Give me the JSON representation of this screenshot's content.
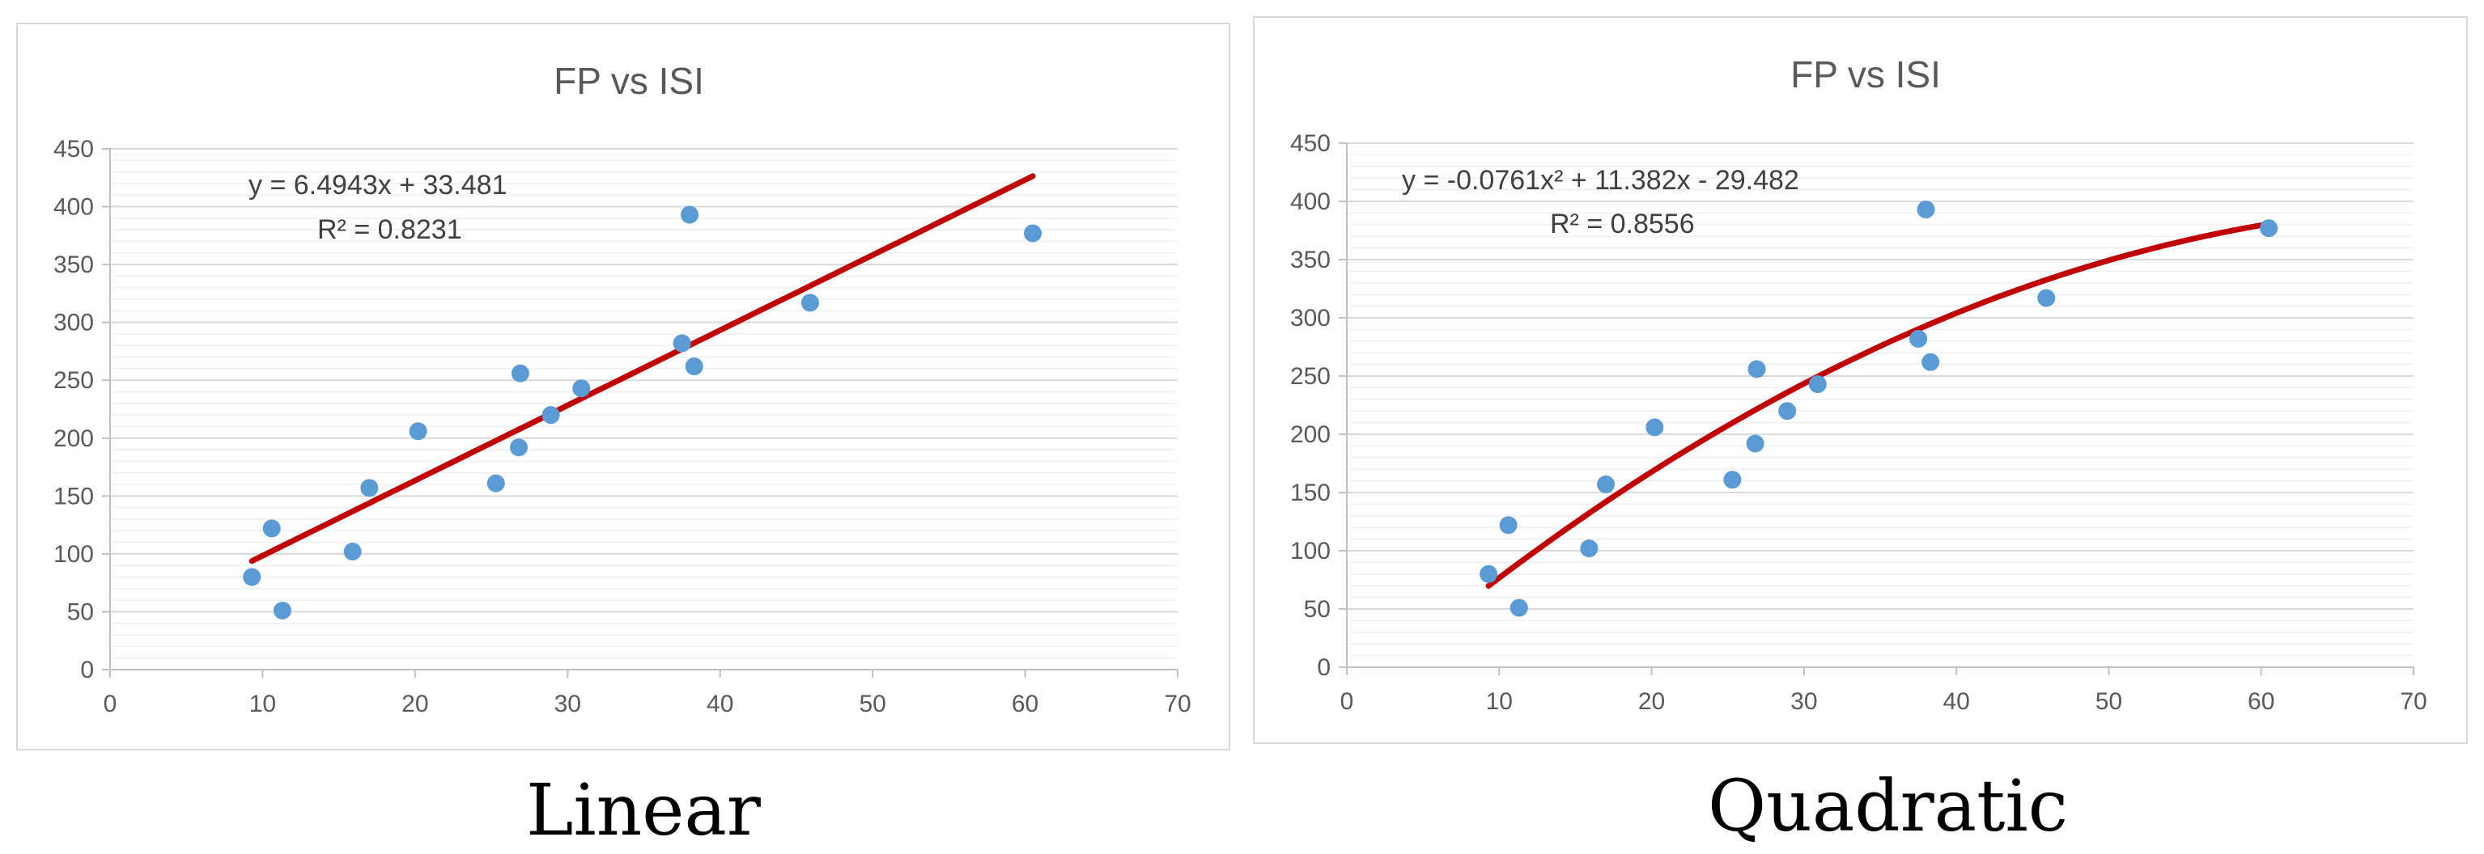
{
  "captions": [
    "Linear",
    "Quadratic"
  ],
  "chart_data": [
    {
      "type": "scatter",
      "title": "FP vs ISI",
      "xlabel": "",
      "ylabel": "",
      "xlim": [
        0,
        70
      ],
      "ylim": [
        0,
        450
      ],
      "xticks": [
        0,
        10,
        20,
        30,
        40,
        50,
        60,
        70
      ],
      "yticks": [
        0,
        50,
        100,
        150,
        200,
        250,
        300,
        350,
        400,
        450
      ],
      "grid": true,
      "legend": "none",
      "point_color": "#5b9bd5",
      "trend_color": "#c00000",
      "points": {
        "x": [
          9.3,
          10.6,
          11.3,
          15.9,
          17.0,
          20.2,
          25.3,
          26.8,
          26.9,
          28.9,
          30.9,
          37.5,
          38.0,
          38.3,
          45.9,
          60.5
        ],
        "y": [
          80,
          122,
          51,
          102,
          157,
          206,
          161,
          192,
          256,
          220,
          243,
          282,
          393,
          262,
          317,
          377
        ]
      },
      "trendline": {
        "kind": "linear",
        "coefficients": [
          6.4943,
          33.481
        ],
        "x_range": [
          9.3,
          60.5
        ],
        "equation": "y = 6.4943x + 33.481",
        "r_squared": "R² = 0.8231"
      }
    },
    {
      "type": "scatter",
      "title": "FP vs ISI",
      "xlabel": "",
      "ylabel": "",
      "xlim": [
        0,
        70
      ],
      "ylim": [
        0,
        450
      ],
      "xticks": [
        0,
        10,
        20,
        30,
        40,
        50,
        60,
        70
      ],
      "yticks": [
        0,
        50,
        100,
        150,
        200,
        250,
        300,
        350,
        400,
        450
      ],
      "grid": true,
      "legend": "none",
      "point_color": "#5b9bd5",
      "trend_color": "#c00000",
      "points": {
        "x": [
          9.3,
          10.6,
          11.3,
          15.9,
          17.0,
          20.2,
          25.3,
          26.8,
          26.9,
          28.9,
          30.9,
          37.5,
          38.0,
          38.3,
          45.9,
          60.5
        ],
        "y": [
          80,
          122,
          51,
          102,
          157,
          206,
          161,
          192,
          256,
          220,
          243,
          282,
          393,
          262,
          317,
          377
        ]
      },
      "trendline": {
        "kind": "quadratic",
        "coefficients": [
          -0.0761,
          11.382,
          -29.482
        ],
        "x_range": [
          9.3,
          60.5
        ],
        "equation": "y = -0.0761x² + 11.382x - 29.482",
        "r_squared": "R² = 0.8556"
      }
    }
  ]
}
